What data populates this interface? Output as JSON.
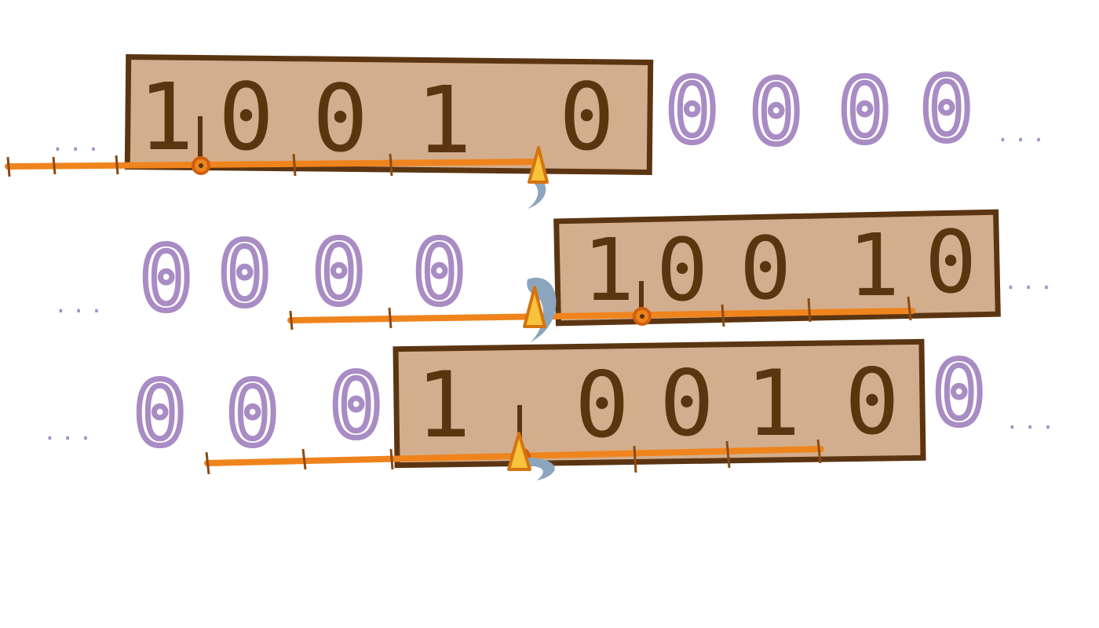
{
  "colors": {
    "box_fill": "#d2ae8e",
    "box_stroke": "#5b3512",
    "digit": "#5a3510",
    "pad_zero": "#a98cc4",
    "ellipsis": "#a98cc4",
    "number_line": "#ef841d",
    "tick": "#8c4a10",
    "marker_fill": "#f7c23c",
    "marker_stroke": "#d5740e",
    "comma": "#8ba5bf"
  },
  "rows": [
    {
      "left_ellipsis": "...",
      "left_pad": [],
      "box_digits": [
        "1",
        "0",
        "0",
        "1",
        "0"
      ],
      "right_pad": [
        "0",
        "0",
        "0",
        "0"
      ],
      "right_ellipsis": "..."
    },
    {
      "left_ellipsis": "...",
      "left_pad": [
        "0",
        "0",
        "0",
        "0"
      ],
      "box_digits": [
        "1",
        "0",
        "0",
        "1",
        "0"
      ],
      "right_pad": [],
      "right_ellipsis": "..."
    },
    {
      "left_ellipsis": "...",
      "left_pad": [
        "0",
        "0",
        "0"
      ],
      "box_digits": [
        "1",
        "0",
        "0",
        "1",
        "0"
      ],
      "right_pad": [
        "0"
      ],
      "right_ellipsis": "..."
    }
  ]
}
